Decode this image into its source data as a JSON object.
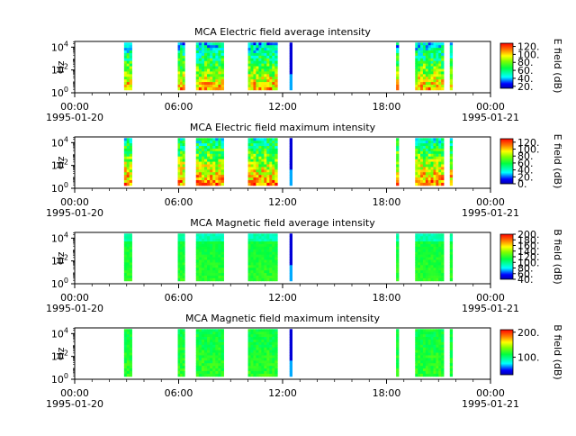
{
  "figure_time_axis": {
    "ticks": [
      "00:00",
      "06:00",
      "12:00",
      "18:00",
      "00:00"
    ],
    "start_date": "1995-01-20",
    "end_date": "1995-01-21",
    "range_hours": [
      0,
      24
    ]
  },
  "colormap": "rainbow (blue → cyan → green → yellow → red)",
  "chart_data": [
    {
      "type": "heatmap",
      "title": "MCA  Electric field average intensity",
      "ylabel": "Hz",
      "y_scale": "log",
      "y_ticks": [
        "10^0",
        "10^2",
        "10^4"
      ],
      "ylim": [
        1,
        31623
      ],
      "colorbar_label": "E field (dB)",
      "colorbar_range": [
        15,
        128
      ],
      "colorbar_ticks": [
        "20.",
        "40.",
        "60.",
        "80.",
        "100.",
        "120."
      ],
      "data_intervals_hours": [
        [
          2.85,
          3.3
        ],
        [
          5.95,
          6.35
        ],
        [
          7.0,
          8.6
        ],
        [
          10.0,
          11.7
        ],
        [
          12.4,
          12.55
        ],
        [
          18.55,
          18.7
        ],
        [
          19.65,
          21.3
        ],
        [
          21.65,
          21.8
        ]
      ]
    },
    {
      "type": "heatmap",
      "title": "MCA  Electric field maximum intensity",
      "ylabel": "Hz",
      "y_scale": "log",
      "y_ticks": [
        "10^0",
        "10^2",
        "10^4"
      ],
      "ylim": [
        1,
        31623
      ],
      "colorbar_label": "E field (dB)",
      "colorbar_range": [
        0,
        130
      ],
      "colorbar_ticks": [
        "0.",
        "20.",
        "40.",
        "60.",
        "80.",
        "100.",
        "120."
      ],
      "data_intervals_hours": [
        [
          2.85,
          3.3
        ],
        [
          5.95,
          6.35
        ],
        [
          7.0,
          8.6
        ],
        [
          10.0,
          11.7
        ],
        [
          12.4,
          12.55
        ],
        [
          18.55,
          18.7
        ],
        [
          19.65,
          21.3
        ],
        [
          21.65,
          21.8
        ]
      ]
    },
    {
      "type": "heatmap",
      "title": "MCA  Magnetic field average intensity",
      "ylabel": "Hz",
      "y_scale": "log",
      "y_ticks": [
        "10^0",
        "10^2",
        "10^4"
      ],
      "ylim": [
        1,
        31623
      ],
      "colorbar_label": "B field (dB)",
      "colorbar_range": [
        40,
        200
      ],
      "colorbar_ticks": [
        "40.",
        "60.",
        "80.",
        "100.",
        "120.",
        "140.",
        "160.",
        "180.",
        "200."
      ],
      "data_intervals_hours": [
        [
          2.85,
          3.3
        ],
        [
          5.95,
          6.35
        ],
        [
          7.0,
          8.6
        ],
        [
          10.0,
          11.7
        ],
        [
          12.4,
          12.55
        ],
        [
          18.55,
          18.7
        ],
        [
          19.65,
          21.3
        ],
        [
          21.65,
          21.8
        ]
      ]
    },
    {
      "type": "heatmap",
      "title": "MCA  Magnetic field maximum intensity",
      "ylabel": "Hz",
      "y_scale": "log",
      "y_ticks": [
        "10^0",
        "10^2",
        "10^4"
      ],
      "ylim": [
        1,
        31623
      ],
      "colorbar_label": "B field (dB)",
      "colorbar_range": [
        30,
        210
      ],
      "colorbar_ticks": [
        "100.",
        "200."
      ],
      "data_intervals_hours": [
        [
          2.85,
          3.3
        ],
        [
          5.95,
          6.35
        ],
        [
          7.0,
          8.6
        ],
        [
          10.0,
          11.7
        ],
        [
          12.4,
          12.55
        ],
        [
          18.55,
          18.7
        ],
        [
          19.65,
          21.3
        ],
        [
          21.65,
          21.8
        ]
      ]
    }
  ]
}
